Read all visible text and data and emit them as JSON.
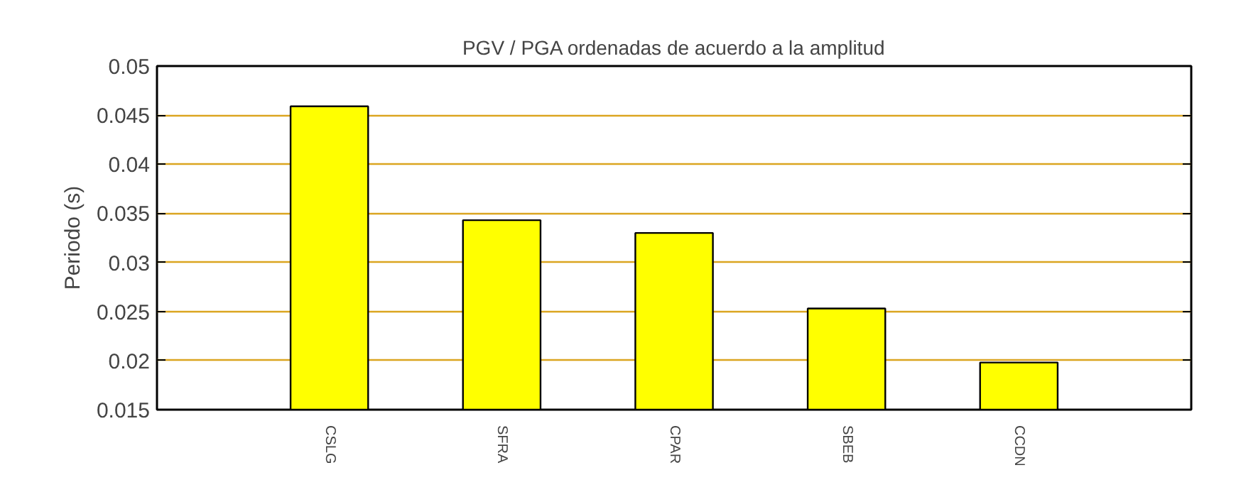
{
  "chart_data": {
    "type": "bar",
    "title": "PGV / PGA ordenadas de acuerdo a la amplitud",
    "ylabel": "Periodo (s)",
    "categories": [
      "CSLG",
      "SFRA",
      "CPAR",
      "SBEB",
      "CCDN"
    ],
    "values": [
      0.0459,
      0.0343,
      0.033,
      0.0253,
      0.0198
    ],
    "color": "#ffff00",
    "ylim": [
      0.015,
      0.05
    ],
    "yticks": [
      0.015,
      0.02,
      0.025,
      0.03,
      0.035,
      0.04,
      0.045,
      0.05
    ],
    "grid": "y"
  }
}
